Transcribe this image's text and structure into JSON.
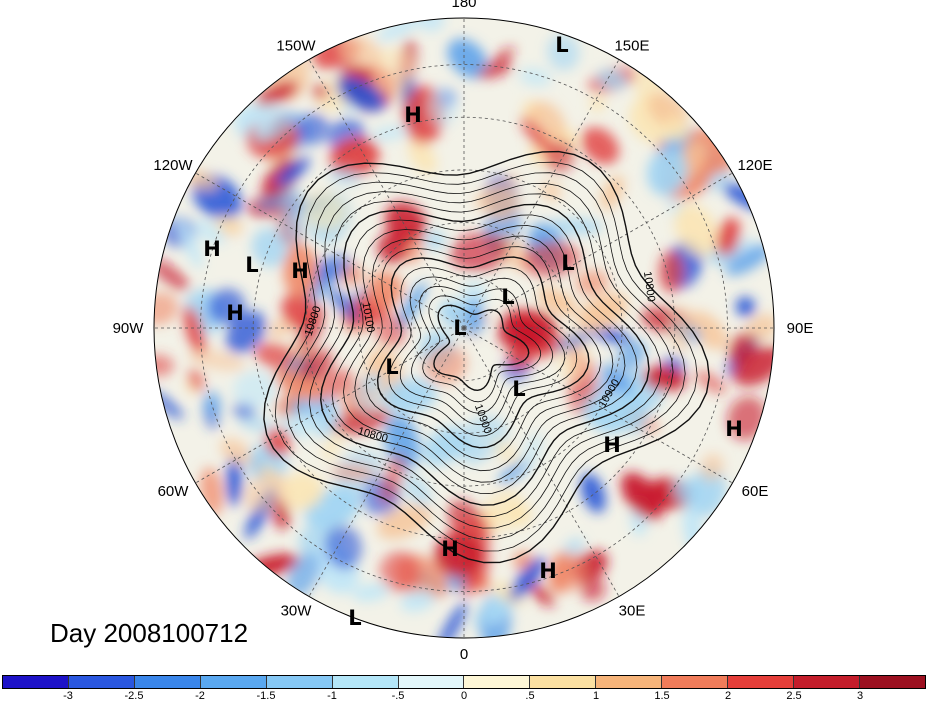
{
  "title": "Day 2008100712",
  "longitude_labels": [
    "90E",
    "60E",
    "30E",
    "0",
    "30W",
    "60W",
    "90W",
    "120W",
    "150W",
    "180",
    "150E",
    "120E"
  ],
  "contour_labels": [
    "10800",
    "10100",
    "10800",
    "10800",
    "10900",
    "10900"
  ],
  "pressure_centers": [
    {
      "type": "L",
      "lon": 72
    },
    {
      "type": "H",
      "lon": 107
    },
    {
      "type": "H",
      "lon": 163
    },
    {
      "type": "L",
      "lon": 166
    },
    {
      "type": "H",
      "lon": 172
    },
    {
      "type": "H",
      "lon": 177
    },
    {
      "type": "L",
      "lon": 27
    },
    {
      "type": "L",
      "lon": 18
    },
    {
      "type": "L",
      "lon": -70
    },
    {
      "type": "L",
      "lon": -130
    },
    {
      "type": "L",
      "lon": -40
    },
    {
      "type": "H",
      "lon": -40
    },
    {
      "type": "H",
      "lon": -17
    },
    {
      "type": "H",
      "lon": -80
    },
    {
      "type": "H",
      "lon": -63
    },
    {
      "type": "L",
      "lon": -108
    }
  ],
  "colorbar": {
    "ticks": [
      "-3",
      "-2.5",
      "-2",
      "-1.5",
      "-1",
      "-.5",
      "0",
      ".5",
      "1",
      "1.5",
      "2",
      "2.5",
      "3"
    ],
    "colors": [
      "#1d12c8",
      "#2a57e0",
      "#3a86ea",
      "#5aa8f0",
      "#86c8f5",
      "#b4e6f8",
      "#e2f6fa",
      "#fdf6d6",
      "#fbe0a2",
      "#f6b47a",
      "#f07c5a",
      "#e53e39",
      "#c41d2b",
      "#9c1020"
    ]
  },
  "colors": {
    "positive": "#e03a3a",
    "negative": "#2b5fd8",
    "neutral": "#f4f0e6"
  }
}
